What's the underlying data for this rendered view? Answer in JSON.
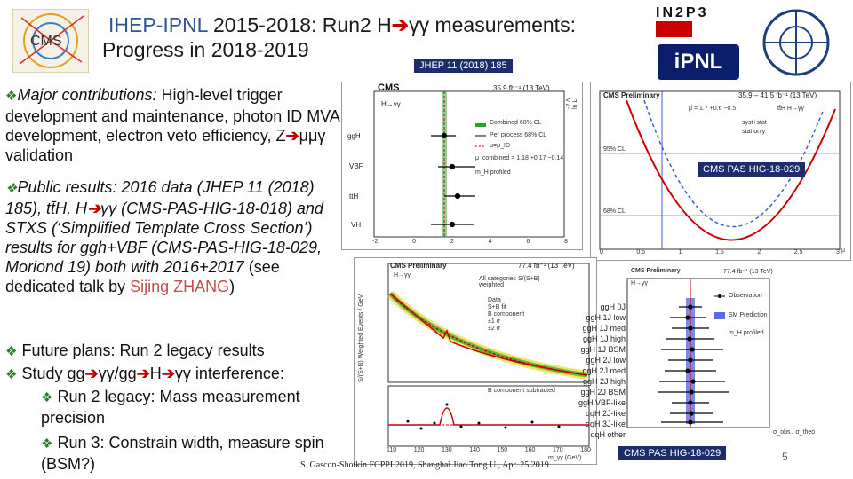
{
  "header": {
    "title_line1_prefix": "IHEP-IPNL",
    "title_line1_rest": " 2015-2018: Run2 H",
    "title_line1_suffix": "γγ measurements:",
    "title_line2": "Progress in 2018-2019",
    "jhep_badge": "JHEP 11 (2018) 185",
    "logo_cms": "CMS",
    "logo_in2p3": "IN2P3",
    "logo_ipnl": "iPNL"
  },
  "bullets": {
    "b1_lead": "Major contributions:",
    "b1_rest": "High-level trigger development and maintenance, photon ID MVA development, electron veto efficiency, Z",
    "b1_tail": "μμγ validation",
    "b2_lead": "Public results: 2016 data (JHEP 11 (2018) 185), tt̄H, H",
    "b2_mid": "γγ (CMS-PAS-HIG-18-018) and STXS (‘Simplified Template Cross Section’) results for ggh+VBF (CMS-PAS-HIG-18-029, Moriond 19) both with 2016+2017",
    "b2_tail": " (see dedicated talk by ",
    "b2_name": "Sijing ZHANG",
    "b2_end": ")",
    "b3": "Future plans: Run 2 legacy results",
    "b4_a": "Study gg",
    "b4_b": "γγ/gg",
    "b4_c": "H",
    "b4_d": "γγ interference:",
    "b5": "Run 2 legacy: Mass measurement precision",
    "b6": "Run 3: Constrain width, measure spin (BSM?)"
  },
  "plots": {
    "p1_cms": "CMS",
    "p1_lumi": "35.9 fb⁻¹ (13 TeV)",
    "p1_proc": "H→γγ",
    "p1_legend": [
      "Combined 68% CL",
      "Per process 68% CL",
      "μ=μ_ID",
      "μ_combined = 1.18 +0.17 −0.14",
      "m_H profiled"
    ],
    "p1_rows": [
      "ggH",
      "VBF",
      "ttH",
      "VH"
    ],
    "p1_xticks": [
      "-2",
      "0",
      "2",
      "4",
      "6",
      "8"
    ],
    "p1_ylabel": "-2 Δ ln L",
    "p2_cms": "CMS Preliminary",
    "p2_lumi": "35.9 – 41.5 fb⁻¹ (13 TeV)",
    "p2_mu": "μ̂ = 1.7 +0.6 −0.5",
    "p2_proc": "tt̄H H→γγ",
    "p2_legend": [
      "syst+stat",
      "stat only"
    ],
    "p2_cls": [
      "95% CL",
      "68% CL"
    ],
    "p2_xticks": [
      "0",
      "0.5",
      "1",
      "1.5",
      "2",
      "2.5",
      "3"
    ],
    "p2_badge": "CMS PAS HIG-18-029",
    "p2_xlabel": "μ",
    "p3_cms": "CMS Preliminary",
    "p3_lumi": "77.4 fb⁻¹ (13 TeV)",
    "p3_proc": "H→γγ",
    "p3_legend_title": "All categories S/(S+B) weighted",
    "p3_legend": [
      "Data",
      "S+B fit",
      "B component",
      "±1 σ",
      "±2 σ"
    ],
    "p3_ylabel": "S/(S+B) Weighted Events / GeV",
    "p3_sub": "B component subtracted",
    "p3_xlabel": "m_γγ (GeV)",
    "p3_xticks": [
      "110",
      "120",
      "130",
      "140",
      "150",
      "160",
      "170",
      "180"
    ],
    "p4_cms": "CMS Preliminary",
    "p4_lumi": "77.4 fb⁻¹ (13 TeV)",
    "p4_proc": "H→γγ",
    "p4_legend": [
      "Observation",
      "SM Prediction",
      "m_H profiled"
    ],
    "p4_rows": [
      "ggH 0J",
      "ggH 1J low",
      "ggH 1J med",
      "ggH 1J high",
      "ggH 1J BSM",
      "ggH 2J low",
      "ggH 2J med",
      "ggH 2J high",
      "ggH 2J BSM",
      "ggH VBF-like",
      "qqH 2J-like",
      "qqH 3J-like",
      "qqH other"
    ],
    "p4_xlabel": "σ_obs / σ_theo",
    "p4_badge": "CMS PAS HIG-18-029"
  },
  "footer": {
    "credit": "S. Gascon-Shotkin FCPPL2019, Shanghai Jiao Tong U., Apr. 25 2019",
    "page": "5"
  },
  "colors": {
    "accent_blue": "#2f5597",
    "arrow_red": "#c00000",
    "bullet_green": "#2b7d2b"
  }
}
